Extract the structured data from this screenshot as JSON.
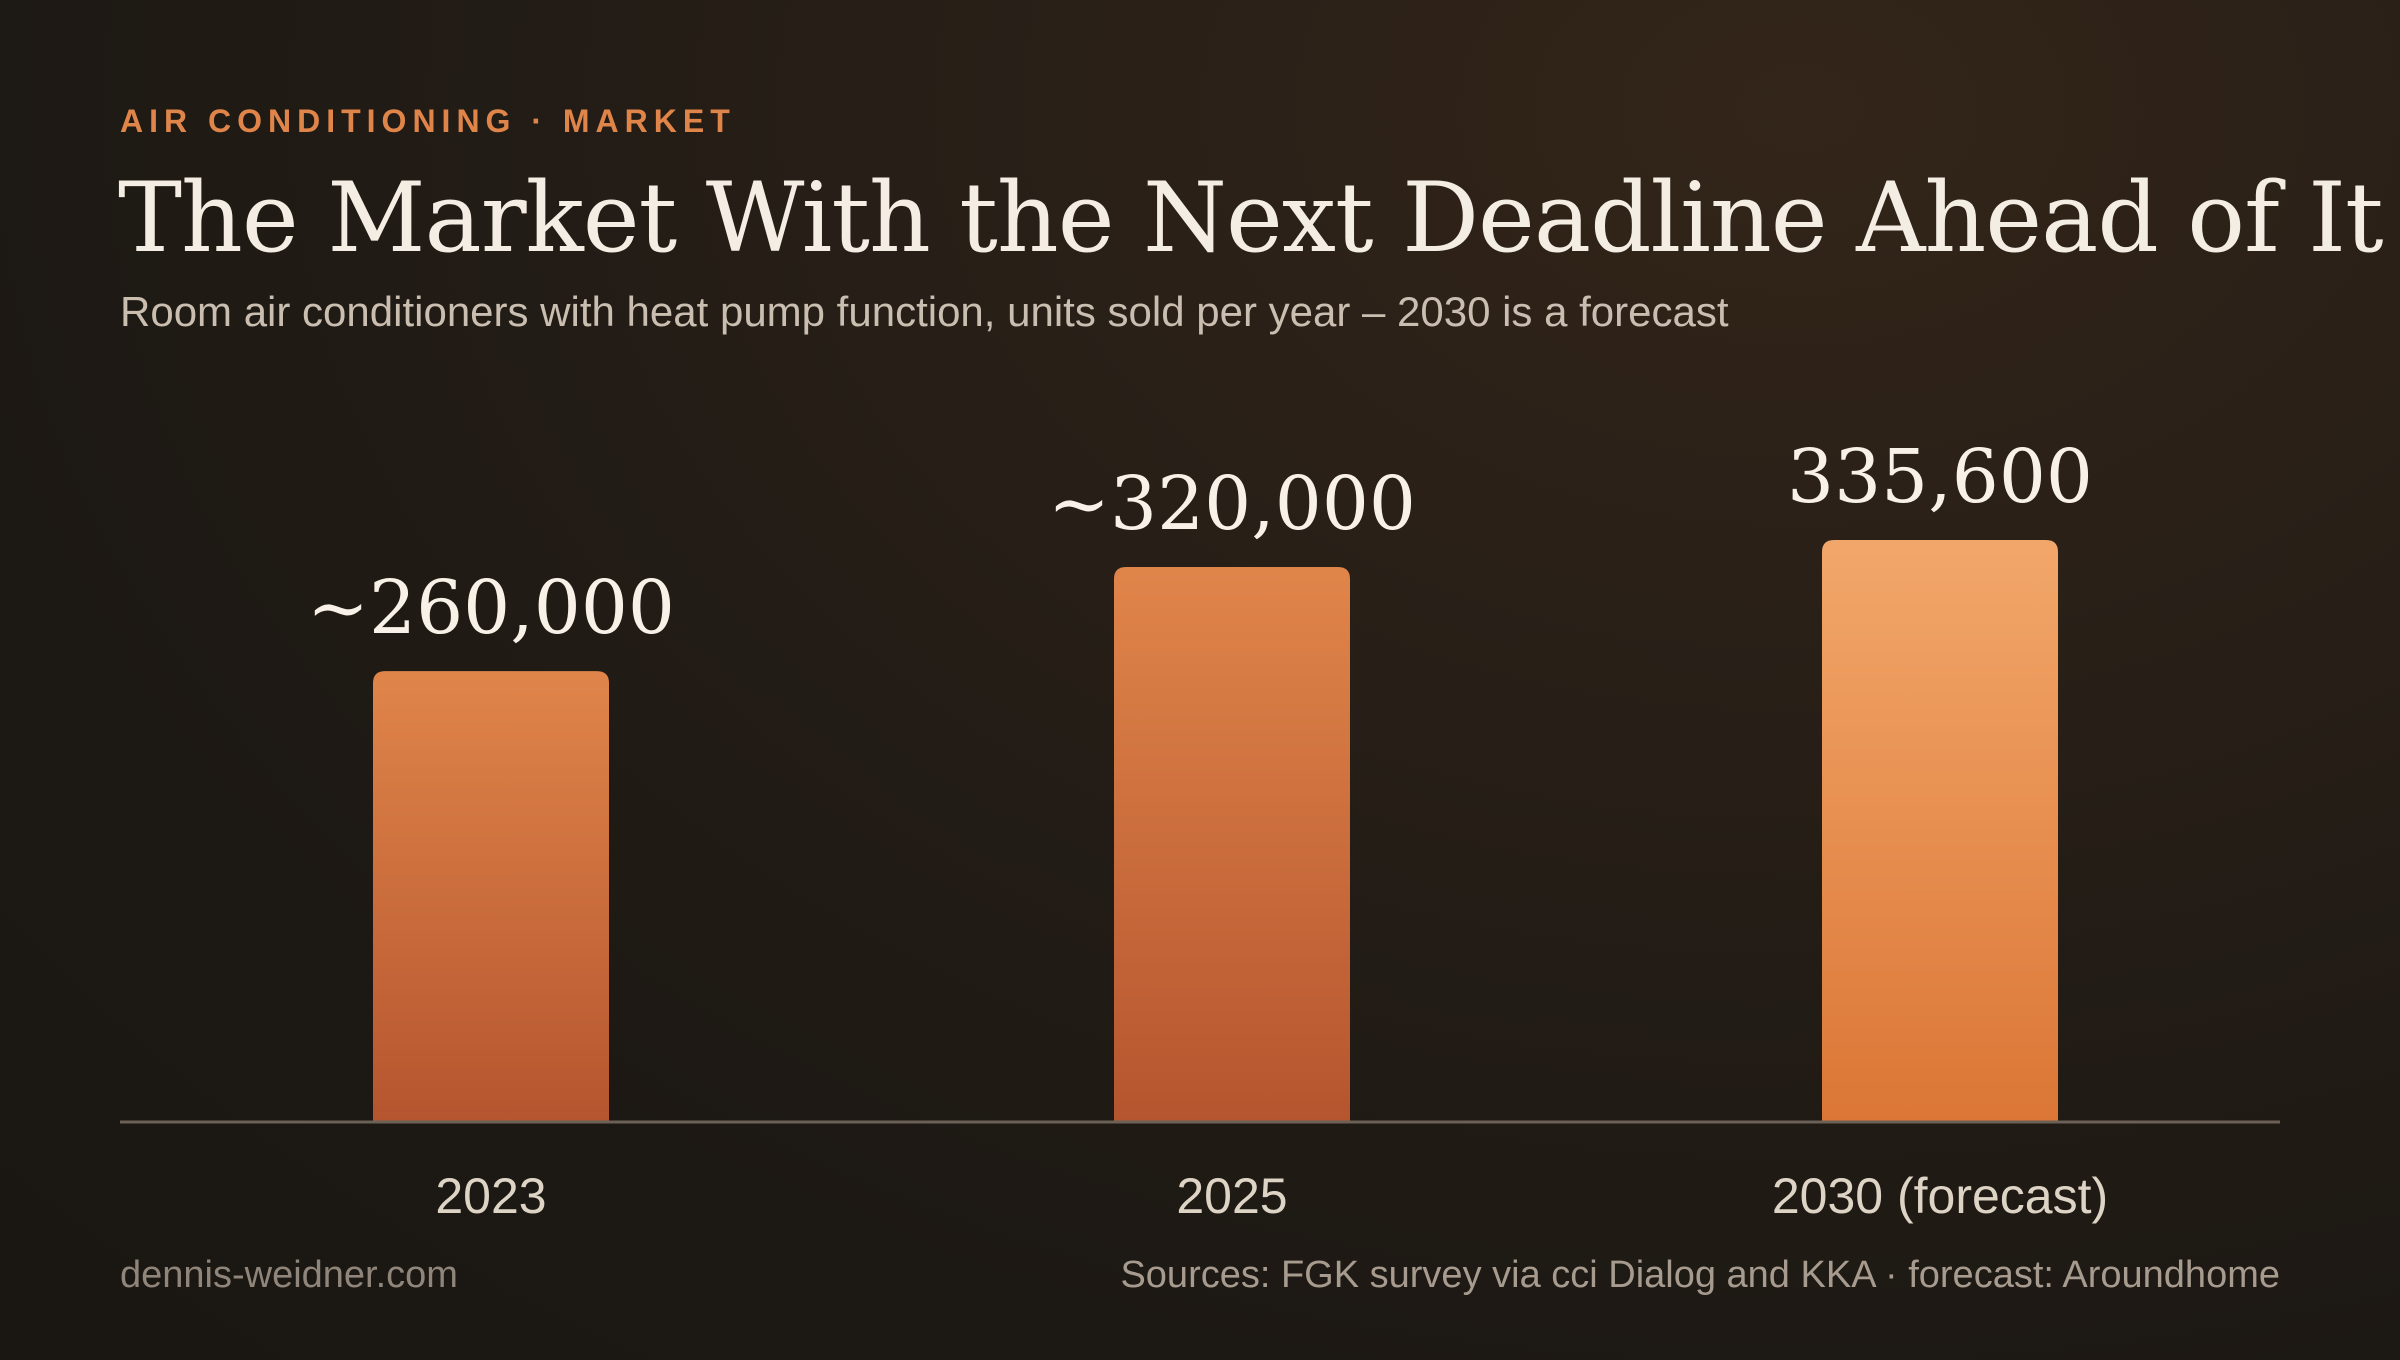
{
  "header": {
    "eyebrow": "AIR CONDITIONING · MARKET",
    "title": "The Market With the Next Deadline Ahead of It",
    "subtitle": "Room air conditioners with heat pump function, units sold per year – 2030 is a forecast"
  },
  "footer": {
    "site": "dennis-weidner.com",
    "sources": "Sources: FGK survey via cci Dialog and KKA · forecast: Aroundhome"
  },
  "colors": {
    "accent": "#e0854a",
    "bar_top": "#e0854a",
    "bar_bottom": "#b5552f",
    "forecast_top": "#f2a76a",
    "forecast_bottom": "#db7636",
    "axis": "#6b6157",
    "value_label": "#f7f1e8",
    "category_label": "#ded4c6"
  },
  "chart_data": {
    "type": "bar",
    "categories": [
      "2023",
      "2025",
      "2030 (forecast)"
    ],
    "values": [
      260000,
      320000,
      335600
    ],
    "value_labels": [
      "~260,000",
      "~320,000",
      "335,600"
    ],
    "forecast": [
      false,
      false,
      true
    ],
    "title": "The Market With the Next Deadline Ahead of It",
    "xlabel": "",
    "ylabel": "",
    "ylim": [
      0,
      335600
    ],
    "grid": false
  }
}
